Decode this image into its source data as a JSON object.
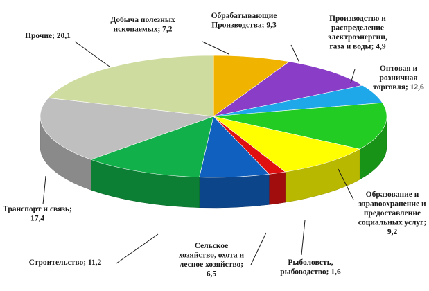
{
  "chart_data": {
    "type": "pie",
    "title": "",
    "slices": [
      {
        "key": "dobycha",
        "label_lines": [
          "Добыча полезных",
          "ископаемых; 7,2"
        ],
        "value": 7.2,
        "color": "#f0b400"
      },
      {
        "key": "obrab",
        "label_lines": [
          "Обрабатывающие",
          "Производства; 9,3"
        ],
        "value": 9.3,
        "color": "#8a3ec7"
      },
      {
        "key": "energy",
        "label_lines": [
          "Производство и",
          "распределение",
          "электроэнергии,",
          "газа и воды; 4,9"
        ],
        "value": 4.9,
        "color": "#1ea8ea"
      },
      {
        "key": "trade",
        "label_lines": [
          "Оптовая и",
          "розничная",
          "торговля; 12,6"
        ],
        "value": 12.6,
        "color": "#22cc22"
      },
      {
        "key": "education",
        "label_lines": [
          "Образование и",
          "здравоохранение и",
          "предоставление",
          "социальных услуг;",
          "9,2"
        ],
        "value": 9.2,
        "color": "#ffff00"
      },
      {
        "key": "fishing",
        "label_lines": [
          "Рыболовсть,",
          "рыбоводство; 1,6"
        ],
        "value": 1.6,
        "color": "#e01010"
      },
      {
        "key": "agri",
        "label_lines": [
          "Сельское",
          "хозяйство, охота и",
          "лесное хозяйство;",
          "6,5"
        ],
        "value": 6.5,
        "color": "#1060c0"
      },
      {
        "key": "construction",
        "label_lines": [
          "Строительство; 11,2"
        ],
        "value": 11.2,
        "color": "#12b04a"
      },
      {
        "key": "transport",
        "label_lines": [
          "Транспорт и связь;",
          "17,4"
        ],
        "value": 17.4,
        "color": "#bfbfbf"
      },
      {
        "key": "other",
        "label_lines": [
          "Прочие; 20,1"
        ],
        "value": 20.1,
        "color": "#cfdca0"
      }
    ],
    "legend": "none"
  }
}
